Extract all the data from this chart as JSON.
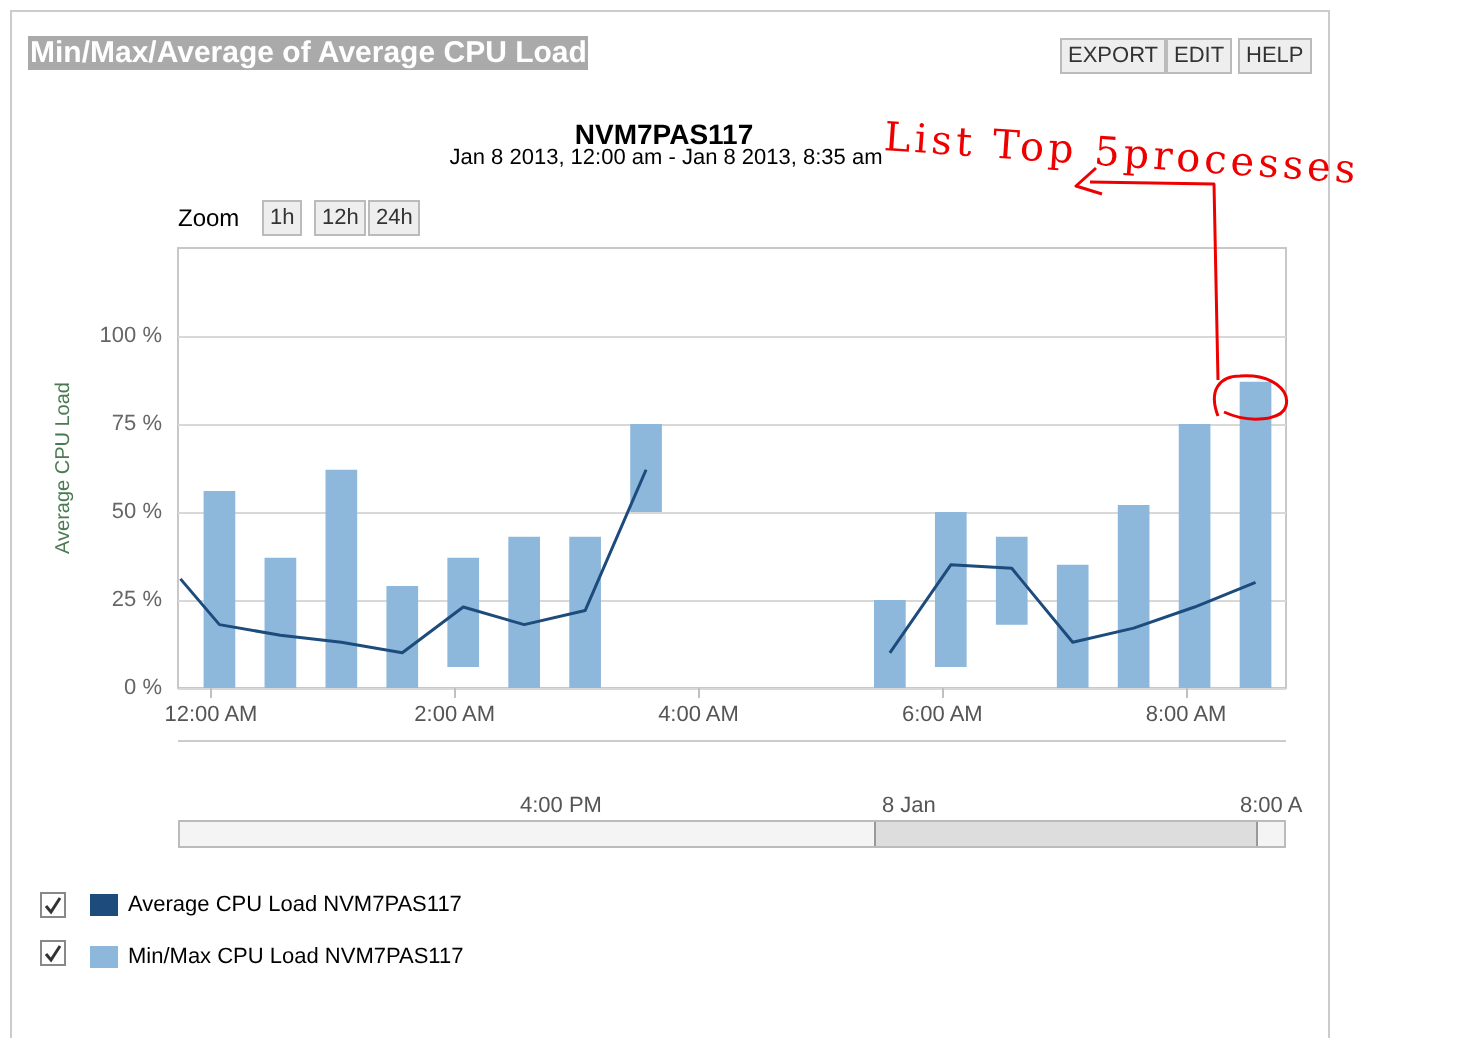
{
  "chart_data": {
    "type": "bar",
    "title": "Min/Max/Average of Average CPU Load",
    "subtitle": "NVM7PAS117",
    "ylabel": "Average CPU Load",
    "annotations": [
      "Jan 8 2013, 12:00 am - Jan 8 2013, 8:35 am",
      "List Top 5processes",
      "EXPORT",
      "EDIT",
      "HELP",
      "Zoom",
      "1h",
      "12h",
      "24h",
      "4:00 PM",
      "8 Jan",
      "8:00 A"
    ],
    "series": [
      {
        "name": "Average CPU Load NVM7PAS117",
        "type": "line",
        "color": "#1c4b7c",
        "marker": "none",
        "x": [
          -0.25,
          0.07,
          0.57,
          1.07,
          1.57,
          2.07,
          2.57,
          3.07,
          3.57,
          4.57,
          5.57,
          6.07,
          6.57,
          7.07,
          7.57,
          8.07,
          8.57
        ],
        "values": [
          31,
          18,
          15,
          13,
          10,
          23,
          18,
          22,
          62,
          null,
          10,
          35,
          34,
          13,
          17,
          23,
          30
        ]
      },
      {
        "name": "Min/Max CPU Load NVM7PAS117",
        "color": "#8db8dc",
        "x": [
          0.07,
          0.57,
          1.07,
          1.57,
          2.07,
          2.57,
          3.07,
          3.57,
          5.57,
          6.07,
          6.57,
          7.07,
          7.57,
          8.07,
          8.57
        ],
        "base": [
          0,
          0,
          0,
          0,
          6,
          0,
          0,
          50,
          0,
          6,
          18,
          0,
          0,
          0,
          0
        ],
        "values": [
          56,
          37,
          62,
          29,
          31,
          43,
          43,
          25,
          25,
          44,
          25,
          35,
          52,
          75,
          87
        ]
      }
    ],
    "xlim": [
      -0.27,
      8.82
    ],
    "xticks": [
      {
        "value": 0,
        "label": "12:00 AM"
      },
      {
        "value": 2,
        "label": "2:00 AM"
      },
      {
        "value": 4,
        "label": "4:00 AM"
      },
      {
        "value": 6,
        "label": "6:00 AM"
      },
      {
        "value": 8,
        "label": "8:00 AM"
      }
    ],
    "ylim": [
      0,
      125
    ],
    "yticks": [
      {
        "value": 0,
        "label": "0 %"
      },
      {
        "value": 25,
        "label": "25 %"
      },
      {
        "value": 50,
        "label": "50 %"
      },
      {
        "value": 75,
        "label": "75 %"
      },
      {
        "value": 100,
        "label": "100 %"
      }
    ],
    "grid": "y",
    "legend": "bottom left"
  }
}
